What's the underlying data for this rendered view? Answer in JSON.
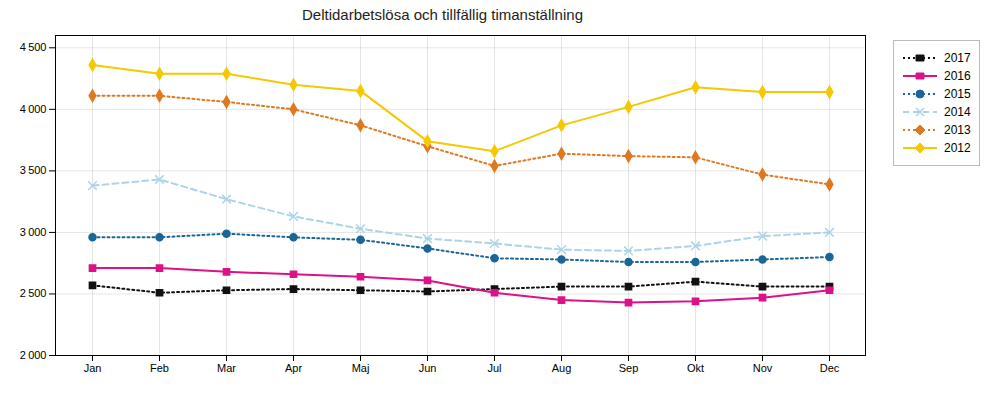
{
  "chart_data": {
    "type": "line",
    "title": "Deltidarbetslösa och tillfällig timanställning",
    "categories": [
      "Jan",
      "Feb",
      "Mar",
      "Apr",
      "Maj",
      "Jun",
      "Jul",
      "Aug",
      "Sep",
      "Okt",
      "Nov",
      "Dec"
    ],
    "series": [
      {
        "name": "2017",
        "color": "#111111",
        "line_style": "dotted",
        "marker": "square",
        "values": [
          2570,
          2510,
          2530,
          2540,
          2530,
          2520,
          2540,
          2560,
          2560,
          2600,
          2560,
          2560
        ]
      },
      {
        "name": "2016",
        "color": "#dd1188",
        "line_style": "solid",
        "marker": "square",
        "values": [
          2710,
          2710,
          2680,
          2660,
          2640,
          2610,
          2510,
          2450,
          2430,
          2440,
          2470,
          2530
        ]
      },
      {
        "name": "2015",
        "color": "#1a6696",
        "line_style": "dotted",
        "marker": "circle",
        "values": [
          2960,
          2960,
          2990,
          2960,
          2940,
          2870,
          2790,
          2780,
          2760,
          2760,
          2780,
          2800
        ]
      },
      {
        "name": "2014",
        "color": "#aad4e8",
        "line_style": "dashed",
        "marker": "x",
        "values": [
          3380,
          3430,
          3270,
          3130,
          3030,
          2950,
          2910,
          2860,
          2850,
          2890,
          2970,
          3000
        ]
      },
      {
        "name": "2013",
        "color": "#e07820",
        "line_style": "dotted",
        "marker": "diamond",
        "values": [
          4110,
          4110,
          4060,
          4000,
          3870,
          3700,
          3540,
          3640,
          3620,
          3610,
          3470,
          3390
        ]
      },
      {
        "name": "2012",
        "color": "#f5c800",
        "line_style": "solid",
        "marker": "diamond",
        "values": [
          4360,
          4290,
          4290,
          4200,
          4150,
          3740,
          3660,
          3870,
          4020,
          4180,
          4140,
          4140
        ]
      }
    ],
    "ylim": [
      2000,
      4600
    ],
    "yticks": [
      {
        "value": 2000,
        "label": "2 000"
      },
      {
        "value": 2500,
        "label": "2 500"
      },
      {
        "value": 3000,
        "label": "3 000"
      },
      {
        "value": 3500,
        "label": "3 500"
      },
      {
        "value": 4000,
        "label": "4 000"
      },
      {
        "value": 4500,
        "label": "4 500"
      }
    ],
    "grid": true,
    "legend": "right"
  }
}
